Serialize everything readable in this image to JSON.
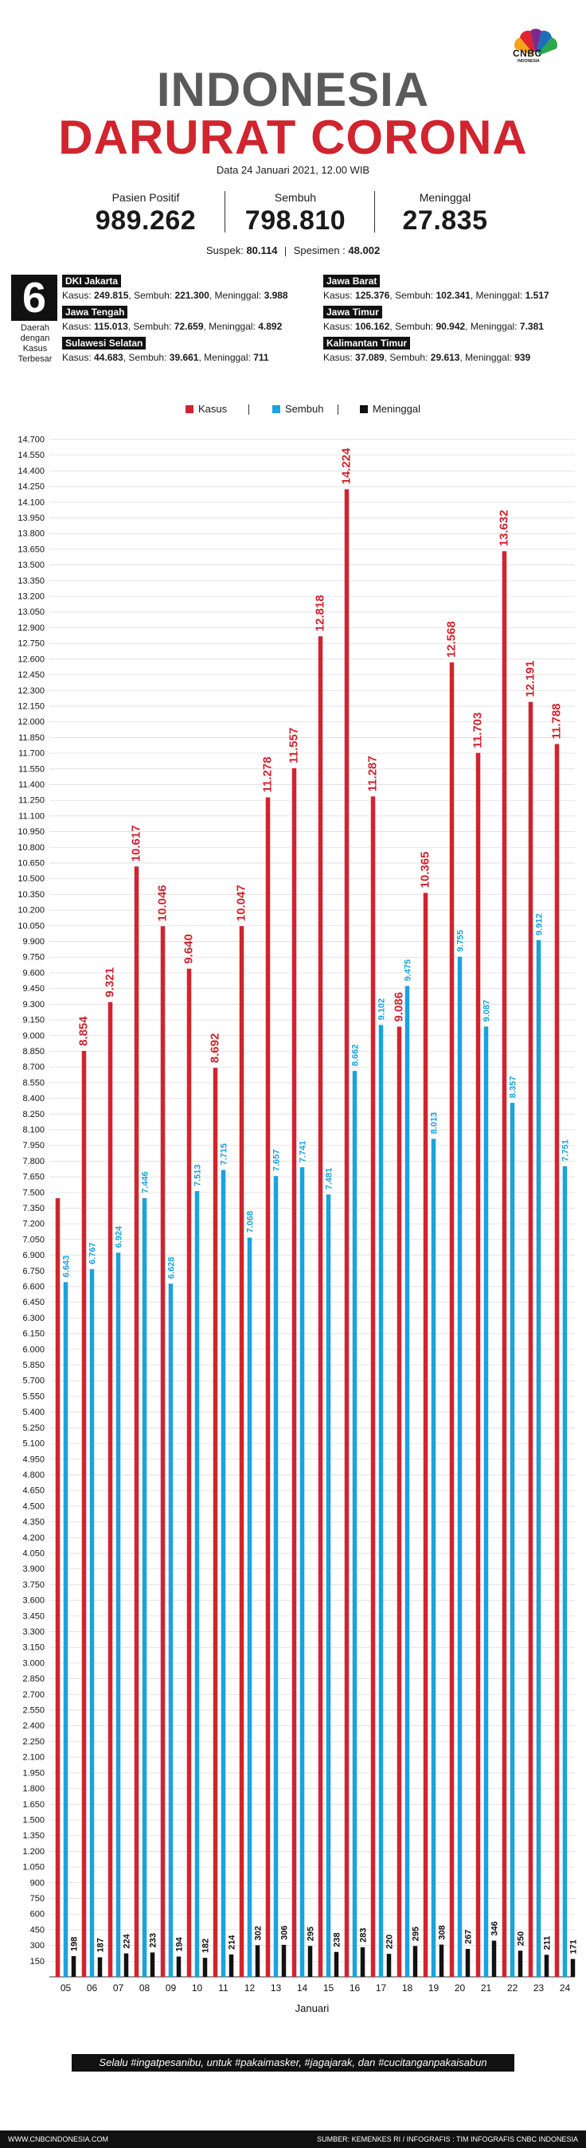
{
  "brand": {
    "name": "CNBC",
    "sub": "INDONESIA"
  },
  "header": {
    "title_line1": "INDONESIA",
    "title_line2": "DARURAT CORONA",
    "date": "Data 24 Januari 2021, 12.00 WIB"
  },
  "stats": [
    {
      "label": "Pasien Positif",
      "value": "989.262"
    },
    {
      "label": "Sembuh",
      "value": "798.810"
    },
    {
      "label": "Meninggal",
      "value": "27.835"
    }
  ],
  "suspek": {
    "label": "Suspek:",
    "value": "80.114",
    "label2": "Spesimen :",
    "value2": "48.002"
  },
  "top_regions": {
    "count": "6",
    "caption": [
      "Daerah",
      "dengan",
      "Kasus",
      "Terbesar"
    ],
    "items": [
      {
        "name": "DKI Jakarta",
        "k": "Kasus:",
        "kv": "249.815",
        "s": ", Sembuh:",
        "sv": "221.300",
        "m": ", Meninggal:",
        "mv": "3.988"
      },
      {
        "name": "Jawa Tengah",
        "k": "Kasus:",
        "kv": "115.013",
        "s": ", Sembuh:",
        "sv": "72.659",
        "m": ", Meninggal:",
        "mv": "4.892"
      },
      {
        "name": "Sulawesi Selatan",
        "k": "Kasus:",
        "kv": "44.683",
        "s": ", Sembuh:",
        "sv": "39.661",
        "m": ", Meninggal:",
        "mv": "711"
      },
      {
        "name": "Jawa Barat",
        "k": "Kasus:",
        "kv": "125.376",
        "s": ", Sembuh:",
        "sv": "102.341",
        "m": ", Meninggal:",
        "mv": "1.517"
      },
      {
        "name": "Jawa Timur",
        "k": "Kasus:",
        "kv": "106.162",
        "s": ", Sembuh:",
        "sv": "90.942",
        "m": ", Meninggal:",
        "mv": "7.381"
      },
      {
        "name": "Kalimantan Timur",
        "k": "Kasus:",
        "kv": "37.089",
        "s": ", Sembuh:",
        "sv": "29.613",
        "m": ", Meninggal:",
        "mv": "939"
      }
    ]
  },
  "legend": [
    {
      "label": "Kasus",
      "color": "#d0242e"
    },
    {
      "label": "Sembuh",
      "color": "#1aa3dc"
    },
    {
      "label": "Meninggal",
      "color": "#111111"
    }
  ],
  "chart_data": {
    "type": "bar",
    "xlabel": "Januari",
    "ylabel": "",
    "ylim": [
      0,
      14700
    ],
    "ytick_step": 150,
    "grid": true,
    "legend_position": "top",
    "categories": [
      "05",
      "06",
      "07",
      "08",
      "09",
      "10",
      "11",
      "12",
      "13",
      "14",
      "15",
      "16",
      "17",
      "18",
      "19",
      "20",
      "21",
      "22",
      "23",
      "24"
    ],
    "series": [
      {
        "name": "Kasus",
        "color": "#d0242e",
        "values": [
          7445,
          8854,
          9321,
          10617,
          10046,
          9640,
          8692,
          10047,
          11278,
          11557,
          12818,
          14224,
          11287,
          9086,
          10365,
          12568,
          11703,
          13632,
          12191,
          11788
        ],
        "labels": [
          null,
          "8.854",
          "9.321",
          "10.617",
          "10.046",
          "9.640",
          "8.692",
          "10.047",
          "11.278",
          "11.557",
          "12.818",
          "14.224",
          "11.287",
          "9.086",
          "10.365",
          "12.568",
          "11.703",
          "13.632",
          "12.191",
          "11.788"
        ]
      },
      {
        "name": "Sembuh",
        "color": "#1aa3dc",
        "values": [
          6643,
          6767,
          6924,
          7446,
          6628,
          7513,
          7715,
          7068,
          7657,
          7741,
          7481,
          8662,
          9102,
          9475,
          8013,
          9755,
          9087,
          8357,
          9912,
          7751
        ],
        "labels": [
          "6.643",
          "6.767",
          "6.924",
          "7.446",
          "6.628",
          "7.513",
          "7.715",
          "7.068",
          "7.657",
          "7.741",
          "7.481",
          "8.662",
          "9.102",
          "9.475",
          "8.013",
          "9.755",
          "9.087",
          "8.357",
          "9.912",
          "7.751"
        ]
      },
      {
        "name": "Meninggal",
        "color": "#111111",
        "values": [
          198,
          187,
          224,
          233,
          194,
          182,
          214,
          302,
          306,
          295,
          238,
          283,
          220,
          295,
          308,
          267,
          346,
          250,
          211,
          171
        ],
        "labels": [
          "198",
          "187",
          "224",
          "233",
          "194",
          "182",
          "214",
          "302",
          "306",
          "295",
          "238",
          "283",
          "220",
          "295",
          "308",
          "267",
          "346",
          "250",
          "211",
          "171"
        ]
      }
    ]
  },
  "footer": {
    "slogan": "Selalu #ingatpesanibu, untuk #pakaimasker, #jagajarak, dan #cucitanganpakaisabun",
    "website": "WWW.CNBCINDONESIA.COM",
    "source": "SUMBER: KEMENKES RI / INFOGRAFIS : TIM INFOGRAFIS CNBC INDONESIA"
  }
}
